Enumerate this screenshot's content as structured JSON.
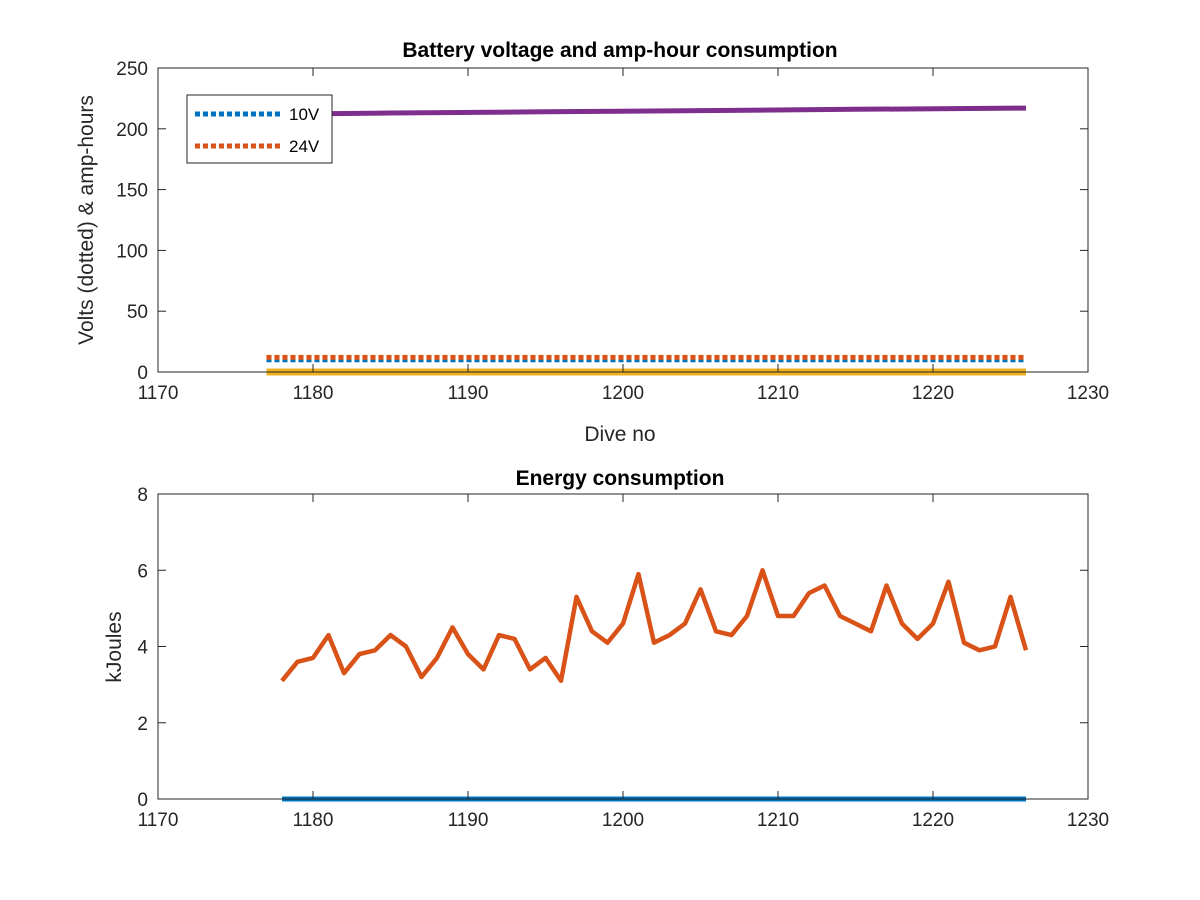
{
  "chart_data": [
    {
      "type": "line",
      "title": "Battery voltage and amp-hour consumption",
      "xlabel": "Dive no",
      "ylabel": "Volts (dotted) & amp-hours",
      "xlim": [
        1170,
        1230
      ],
      "ylim": [
        0,
        250
      ],
      "xticks": [
        1170,
        1180,
        1190,
        1200,
        1210,
        1220,
        1230
      ],
      "yticks": [
        0,
        50,
        100,
        150,
        200,
        250
      ],
      "grid": false,
      "legend_position": "top-left",
      "series": [
        {
          "name": "10V",
          "style": "dotted",
          "color": "#0072BD",
          "x": [
            1177,
            1226
          ],
          "y": [
            10,
            10
          ]
        },
        {
          "name": "24V",
          "style": "dotted",
          "color": "#D95319",
          "x": [
            1177,
            1226
          ],
          "y": [
            12,
            12
          ]
        },
        {
          "style": "solid",
          "color": "#7E2F8E",
          "x": [
            1177,
            1185,
            1195,
            1205,
            1215,
            1226
          ],
          "y": [
            212,
            213,
            214,
            215,
            216,
            217
          ]
        },
        {
          "style": "solid",
          "color": "#EDB120",
          "x": [
            1177,
            1226
          ],
          "y": [
            0,
            0
          ]
        }
      ]
    },
    {
      "type": "line",
      "title": "Energy consumption",
      "xlabel": "",
      "ylabel": "kJoules",
      "xlim": [
        1170,
        1230
      ],
      "ylim": [
        0,
        8
      ],
      "xticks": [
        1170,
        1180,
        1190,
        1200,
        1210,
        1220,
        1230
      ],
      "yticks": [
        0,
        2,
        4,
        6,
        8
      ],
      "grid": false,
      "series": [
        {
          "style": "solid",
          "color": "#D95319",
          "x": [
            1178,
            1179,
            1180,
            1181,
            1182,
            1183,
            1184,
            1185,
            1186,
            1187,
            1188,
            1189,
            1190,
            1191,
            1192,
            1193,
            1194,
            1195,
            1196,
            1197,
            1198,
            1199,
            1200,
            1201,
            1202,
            1203,
            1204,
            1205,
            1206,
            1207,
            1208,
            1209,
            1210,
            1211,
            1212,
            1213,
            1214,
            1215,
            1216,
            1217,
            1218,
            1219,
            1220,
            1221,
            1222,
            1223,
            1224,
            1225,
            1226
          ],
          "y": [
            3.1,
            3.6,
            3.7,
            4.3,
            3.3,
            3.8,
            3.9,
            4.3,
            4.0,
            3.2,
            3.7,
            4.5,
            3.8,
            3.4,
            4.3,
            4.2,
            3.4,
            3.7,
            3.1,
            5.3,
            4.4,
            4.1,
            4.6,
            5.9,
            4.1,
            4.3,
            4.6,
            5.5,
            4.4,
            4.3,
            4.8,
            6.0,
            4.8,
            4.8,
            5.4,
            5.6,
            4.8,
            4.6,
            4.4,
            5.6,
            4.6,
            4.2,
            4.6,
            5.7,
            4.1,
            3.9,
            4.0,
            5.3,
            3.9
          ]
        },
        {
          "style": "solid",
          "color": "#0072BD",
          "x": [
            1178,
            1226
          ],
          "y": [
            0,
            0
          ]
        }
      ]
    }
  ]
}
